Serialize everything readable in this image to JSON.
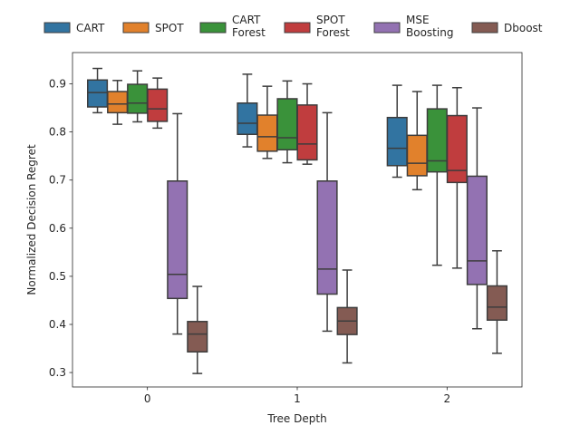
{
  "chart_data": {
    "type": "boxplot",
    "title": "",
    "xlabel": "Tree Depth",
    "ylabel": "Normalized Decision Regret",
    "categories": [
      "0",
      "1",
      "2"
    ],
    "ylim": [
      0.27,
      0.965
    ],
    "yticks": [
      "0.3",
      "0.4",
      "0.5",
      "0.6",
      "0.7",
      "0.8",
      "0.9"
    ],
    "grid": false,
    "legend_position": "top, above plot",
    "series": [
      {
        "legend_label": "CART ",
        "legend_lines": [
          "CART"
        ],
        "color": "#3274a1",
        "boxes": [
          {
            "whislo": 0.84,
            "q1": 0.852,
            "med": 0.882,
            "q3": 0.908,
            "whishi": 0.932
          },
          {
            "whislo": 0.769,
            "q1": 0.795,
            "med": 0.818,
            "q3": 0.86,
            "whishi": 0.92
          },
          {
            "whislo": 0.706,
            "q1": 0.73,
            "med": 0.766,
            "q3": 0.83,
            "whishi": 0.897
          }
        ]
      },
      {
        "legend_label": "SPOT",
        "legend_lines": [
          "SPOT"
        ],
        "color": "#e1812c",
        "boxes": [
          {
            "whislo": 0.816,
            "q1": 0.84,
            "med": 0.858,
            "q3": 0.884,
            "whishi": 0.907
          },
          {
            "whislo": 0.745,
            "q1": 0.76,
            "med": 0.79,
            "q3": 0.835,
            "whishi": 0.895
          },
          {
            "whislo": 0.68,
            "q1": 0.709,
            "med": 0.735,
            "q3": 0.793,
            "whishi": 0.884
          }
        ]
      },
      {
        "legend_label": "CART Forest",
        "legend_lines": [
          "CART",
          "Forest"
        ],
        "color": "#3a923a",
        "boxes": [
          {
            "whislo": 0.821,
            "q1": 0.839,
            "med": 0.86,
            "q3": 0.899,
            "whishi": 0.927
          },
          {
            "whislo": 0.736,
            "q1": 0.763,
            "med": 0.788,
            "q3": 0.869,
            "whishi": 0.906
          },
          {
            "whislo": 0.523,
            "q1": 0.717,
            "med": 0.74,
            "q3": 0.848,
            "whishi": 0.897
          }
        ]
      },
      {
        "legend_label": "SPOT Forest",
        "legend_lines": [
          "SPOT",
          "Forest"
        ],
        "color": "#c03d3e",
        "boxes": [
          {
            "whislo": 0.808,
            "q1": 0.822,
            "med": 0.848,
            "q3": 0.889,
            "whishi": 0.912
          },
          {
            "whislo": 0.733,
            "q1": 0.742,
            "med": 0.775,
            "q3": 0.856,
            "whishi": 0.9
          },
          {
            "whislo": 0.517,
            "q1": 0.695,
            "med": 0.72,
            "q3": 0.834,
            "whishi": 0.892
          }
        ]
      },
      {
        "legend_label": "MSE Boosting",
        "legend_lines": [
          "MSE",
          "Boosting"
        ],
        "color": "#9372b2",
        "boxes": [
          {
            "whislo": 0.38,
            "q1": 0.454,
            "med": 0.504,
            "q3": 0.698,
            "whishi": 0.838
          },
          {
            "whislo": 0.386,
            "q1": 0.463,
            "med": 0.515,
            "q3": 0.698,
            "whishi": 0.84
          },
          {
            "whislo": 0.391,
            "q1": 0.483,
            "med": 0.532,
            "q3": 0.708,
            "whishi": 0.85
          }
        ]
      },
      {
        "legend_label": "Dboost",
        "legend_lines": [
          "Dboost"
        ],
        "color": "#845b53",
        "boxes": [
          {
            "whislo": 0.298,
            "q1": 0.343,
            "med": 0.38,
            "q3": 0.406,
            "whishi": 0.479
          },
          {
            "whislo": 0.32,
            "q1": 0.379,
            "med": 0.407,
            "q3": 0.435,
            "whishi": 0.513
          },
          {
            "whislo": 0.34,
            "q1": 0.409,
            "med": 0.436,
            "q3": 0.48,
            "whishi": 0.553
          }
        ]
      }
    ]
  }
}
